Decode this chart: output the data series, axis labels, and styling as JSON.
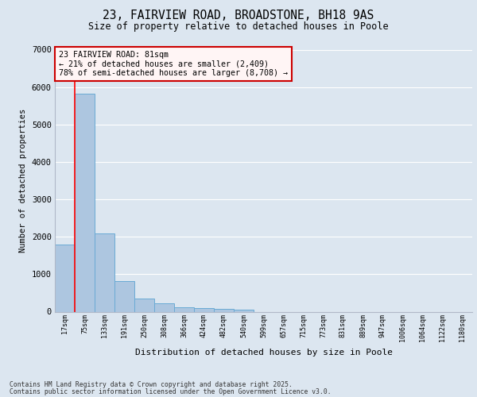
{
  "title_line1": "23, FAIRVIEW ROAD, BROADSTONE, BH18 9AS",
  "title_line2": "Size of property relative to detached houses in Poole",
  "xlabel": "Distribution of detached houses by size in Poole",
  "ylabel": "Number of detached properties",
  "footer_line1": "Contains HM Land Registry data © Crown copyright and database right 2025.",
  "footer_line2": "Contains public sector information licensed under the Open Government Licence v3.0.",
  "annotation_line1": "23 FAIRVIEW ROAD: 81sqm",
  "annotation_line2": "← 21% of detached houses are smaller (2,409)",
  "annotation_line3": "78% of semi-detached houses are larger (8,708) →",
  "bar_labels": [
    "17sqm",
    "75sqm",
    "133sqm",
    "191sqm",
    "250sqm",
    "308sqm",
    "366sqm",
    "424sqm",
    "482sqm",
    "540sqm",
    "599sqm",
    "657sqm",
    "715sqm",
    "773sqm",
    "831sqm",
    "889sqm",
    "947sqm",
    "1006sqm",
    "1064sqm",
    "1122sqm",
    "1180sqm"
  ],
  "bar_values": [
    1800,
    5820,
    2080,
    820,
    360,
    220,
    110,
    85,
    70,
    50,
    0,
    0,
    0,
    0,
    0,
    0,
    0,
    0,
    0,
    0,
    0
  ],
  "bar_color": "#adc6e0",
  "bar_edge_color": "#6aaad4",
  "red_line_bar_index": 1,
  "background_color": "#dce6f0",
  "plot_background": "#dce6f0",
  "ylim": [
    0,
    7000
  ],
  "yticks": [
    0,
    1000,
    2000,
    3000,
    4000,
    5000,
    6000,
    7000
  ],
  "grid_color": "#ffffff",
  "ann_facecolor": "#fff5f5",
  "ann_edgecolor": "#cc0000"
}
